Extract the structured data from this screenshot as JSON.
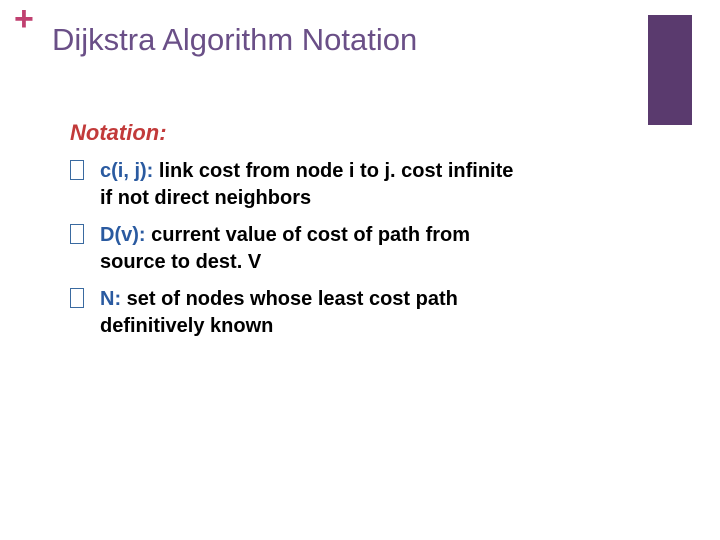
{
  "colors": {
    "plus": "#c04070",
    "title": "#6a4f87",
    "heading": "#c23a3a",
    "term": "#2a5aa0",
    "desc": "#000000",
    "purple_box": "#5a3a6e",
    "bullet_border": "#3a6aa0",
    "background": "#ffffff"
  },
  "typography": {
    "plus_fontsize": 34,
    "title_fontsize": 31,
    "heading_fontsize": 22,
    "item_fontsize": 20
  },
  "decor": {
    "plus_symbol": "+"
  },
  "slide": {
    "title": "Dijkstra Algorithm Notation",
    "heading": "Notation:",
    "items": [
      {
        "term": "c(i, j):",
        "desc": "link cost from node i to j. cost infinite if not direct neighbors"
      },
      {
        "term": "D(v):",
        "desc": "current value of cost of path from source to dest. V"
      },
      {
        "term": "N:",
        "desc": "set of nodes whose least cost path definitively known"
      }
    ]
  }
}
